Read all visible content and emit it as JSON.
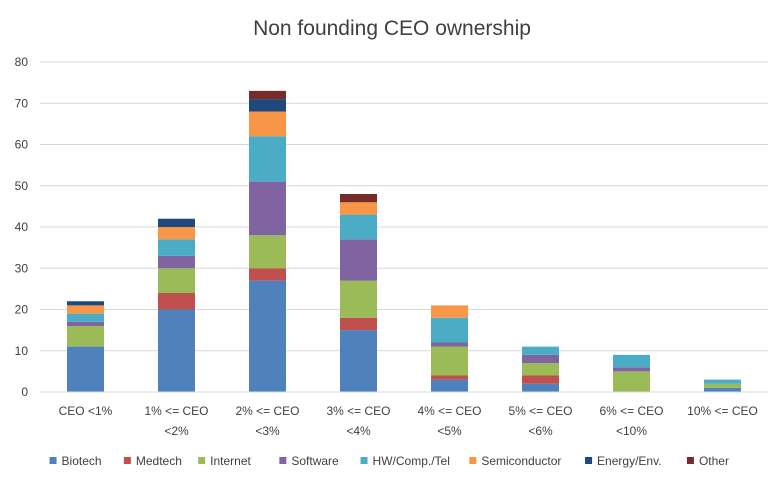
{
  "chart_data": {
    "type": "bar",
    "stacked": true,
    "title": "Non founding CEO ownership",
    "xlabel": "",
    "ylabel": "",
    "ylim": [
      0,
      80
    ],
    "yticks": [
      0,
      10,
      20,
      30,
      40,
      50,
      60,
      70,
      80
    ],
    "grid": true,
    "legend_position": "bottom",
    "categories": [
      [
        "CEO <1%"
      ],
      [
        "1% <= CEO",
        "<2%"
      ],
      [
        "2% <= CEO",
        "<3%"
      ],
      [
        "3% <= CEO",
        "<4%"
      ],
      [
        "4% <= CEO",
        "<5%"
      ],
      [
        "5% <= CEO",
        "<6%"
      ],
      [
        "6% <= CEO",
        "<10%"
      ],
      [
        "10% <= CEO"
      ]
    ],
    "series": [
      {
        "name": "Biotech",
        "color": "#4f81bd",
        "values": [
          11,
          20,
          27,
          15,
          3,
          2,
          0,
          1
        ]
      },
      {
        "name": "Medtech",
        "color": "#c0504d",
        "values": [
          0,
          4,
          3,
          3,
          1,
          2,
          0,
          0
        ]
      },
      {
        "name": "Internet",
        "color": "#9bbb59",
        "values": [
          5,
          6,
          8,
          9,
          7,
          3,
          5,
          1
        ]
      },
      {
        "name": "Software",
        "color": "#8064a2",
        "values": [
          1,
          3,
          13,
          10,
          1,
          2,
          1,
          0
        ]
      },
      {
        "name": "HW/Comp./Tel",
        "color": "#4bacc6",
        "values": [
          2,
          4,
          11,
          6,
          6,
          2,
          3,
          1
        ]
      },
      {
        "name": "Semiconductor",
        "color": "#f79646",
        "values": [
          2,
          3,
          6,
          3,
          3,
          0,
          0,
          0
        ]
      },
      {
        "name": "Energy/Env.",
        "color": "#1f497d",
        "values": [
          1,
          2,
          3,
          0,
          0,
          0,
          0,
          0
        ]
      },
      {
        "name": "Other",
        "color": "#772c2a",
        "values": [
          0,
          0,
          2,
          2,
          0,
          0,
          0,
          0
        ]
      }
    ]
  }
}
